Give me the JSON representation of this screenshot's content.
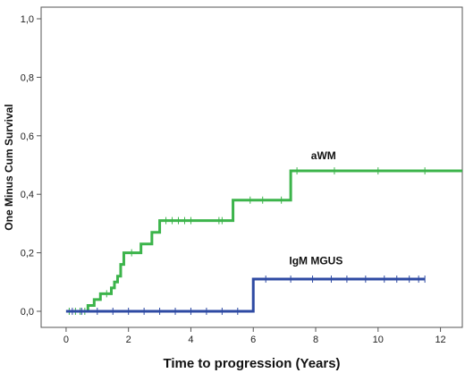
{
  "chart_data": {
    "type": "line",
    "title": "",
    "xlabel": "Time to progression (Years)",
    "ylabel": "One Minus Cum Survival",
    "xlim": [
      -0.8,
      12.7
    ],
    "ylim": [
      0.0,
      1.0
    ],
    "x_ticks": [
      0,
      2,
      4,
      6,
      8,
      10,
      12
    ],
    "x_tick_labels": [
      "0",
      "2",
      "4",
      "6",
      "8",
      "10",
      "12"
    ],
    "y_ticks": [
      0.0,
      0.2,
      0.4,
      0.6,
      0.8,
      1.0
    ],
    "y_tick_labels": [
      "0,0",
      "0,2",
      "0,4",
      "0,6",
      "0,8",
      "1,0"
    ],
    "grid": false,
    "series": [
      {
        "name": "aWM",
        "color": "#3cb44b",
        "step": [
          [
            0,
            0.0
          ],
          [
            0.7,
            0.02
          ],
          [
            0.9,
            0.04
          ],
          [
            1.1,
            0.06
          ],
          [
            1.45,
            0.08
          ],
          [
            1.55,
            0.1
          ],
          [
            1.65,
            0.12
          ],
          [
            1.75,
            0.16
          ],
          [
            1.85,
            0.2
          ],
          [
            2.4,
            0.23
          ],
          [
            2.75,
            0.27
          ],
          [
            3.0,
            0.31
          ],
          [
            5.35,
            0.38
          ],
          [
            7.2,
            0.48
          ],
          [
            12.7,
            0.48
          ]
        ],
        "censor_x": [
          0.1,
          0.3,
          0.45,
          0.6,
          1.3,
          2.1,
          3.2,
          3.4,
          3.6,
          3.8,
          4.0,
          4.9,
          5.0,
          5.9,
          6.3,
          6.9,
          7.4,
          8.6,
          10.0,
          11.5
        ]
      },
      {
        "name": "IgM MGUS",
        "color": "#2e4aa3",
        "step": [
          [
            0,
            0.0
          ],
          [
            6.0,
            0.11
          ],
          [
            11.5,
            0.11
          ]
        ],
        "censor_x": [
          0.2,
          0.5,
          1.0,
          1.5,
          2.0,
          2.5,
          3.0,
          3.5,
          4.0,
          4.5,
          5.0,
          5.5,
          6.4,
          7.2,
          7.9,
          8.5,
          9.0,
          9.6,
          10.2,
          10.6,
          11.0,
          11.3,
          11.5
        ]
      }
    ]
  }
}
